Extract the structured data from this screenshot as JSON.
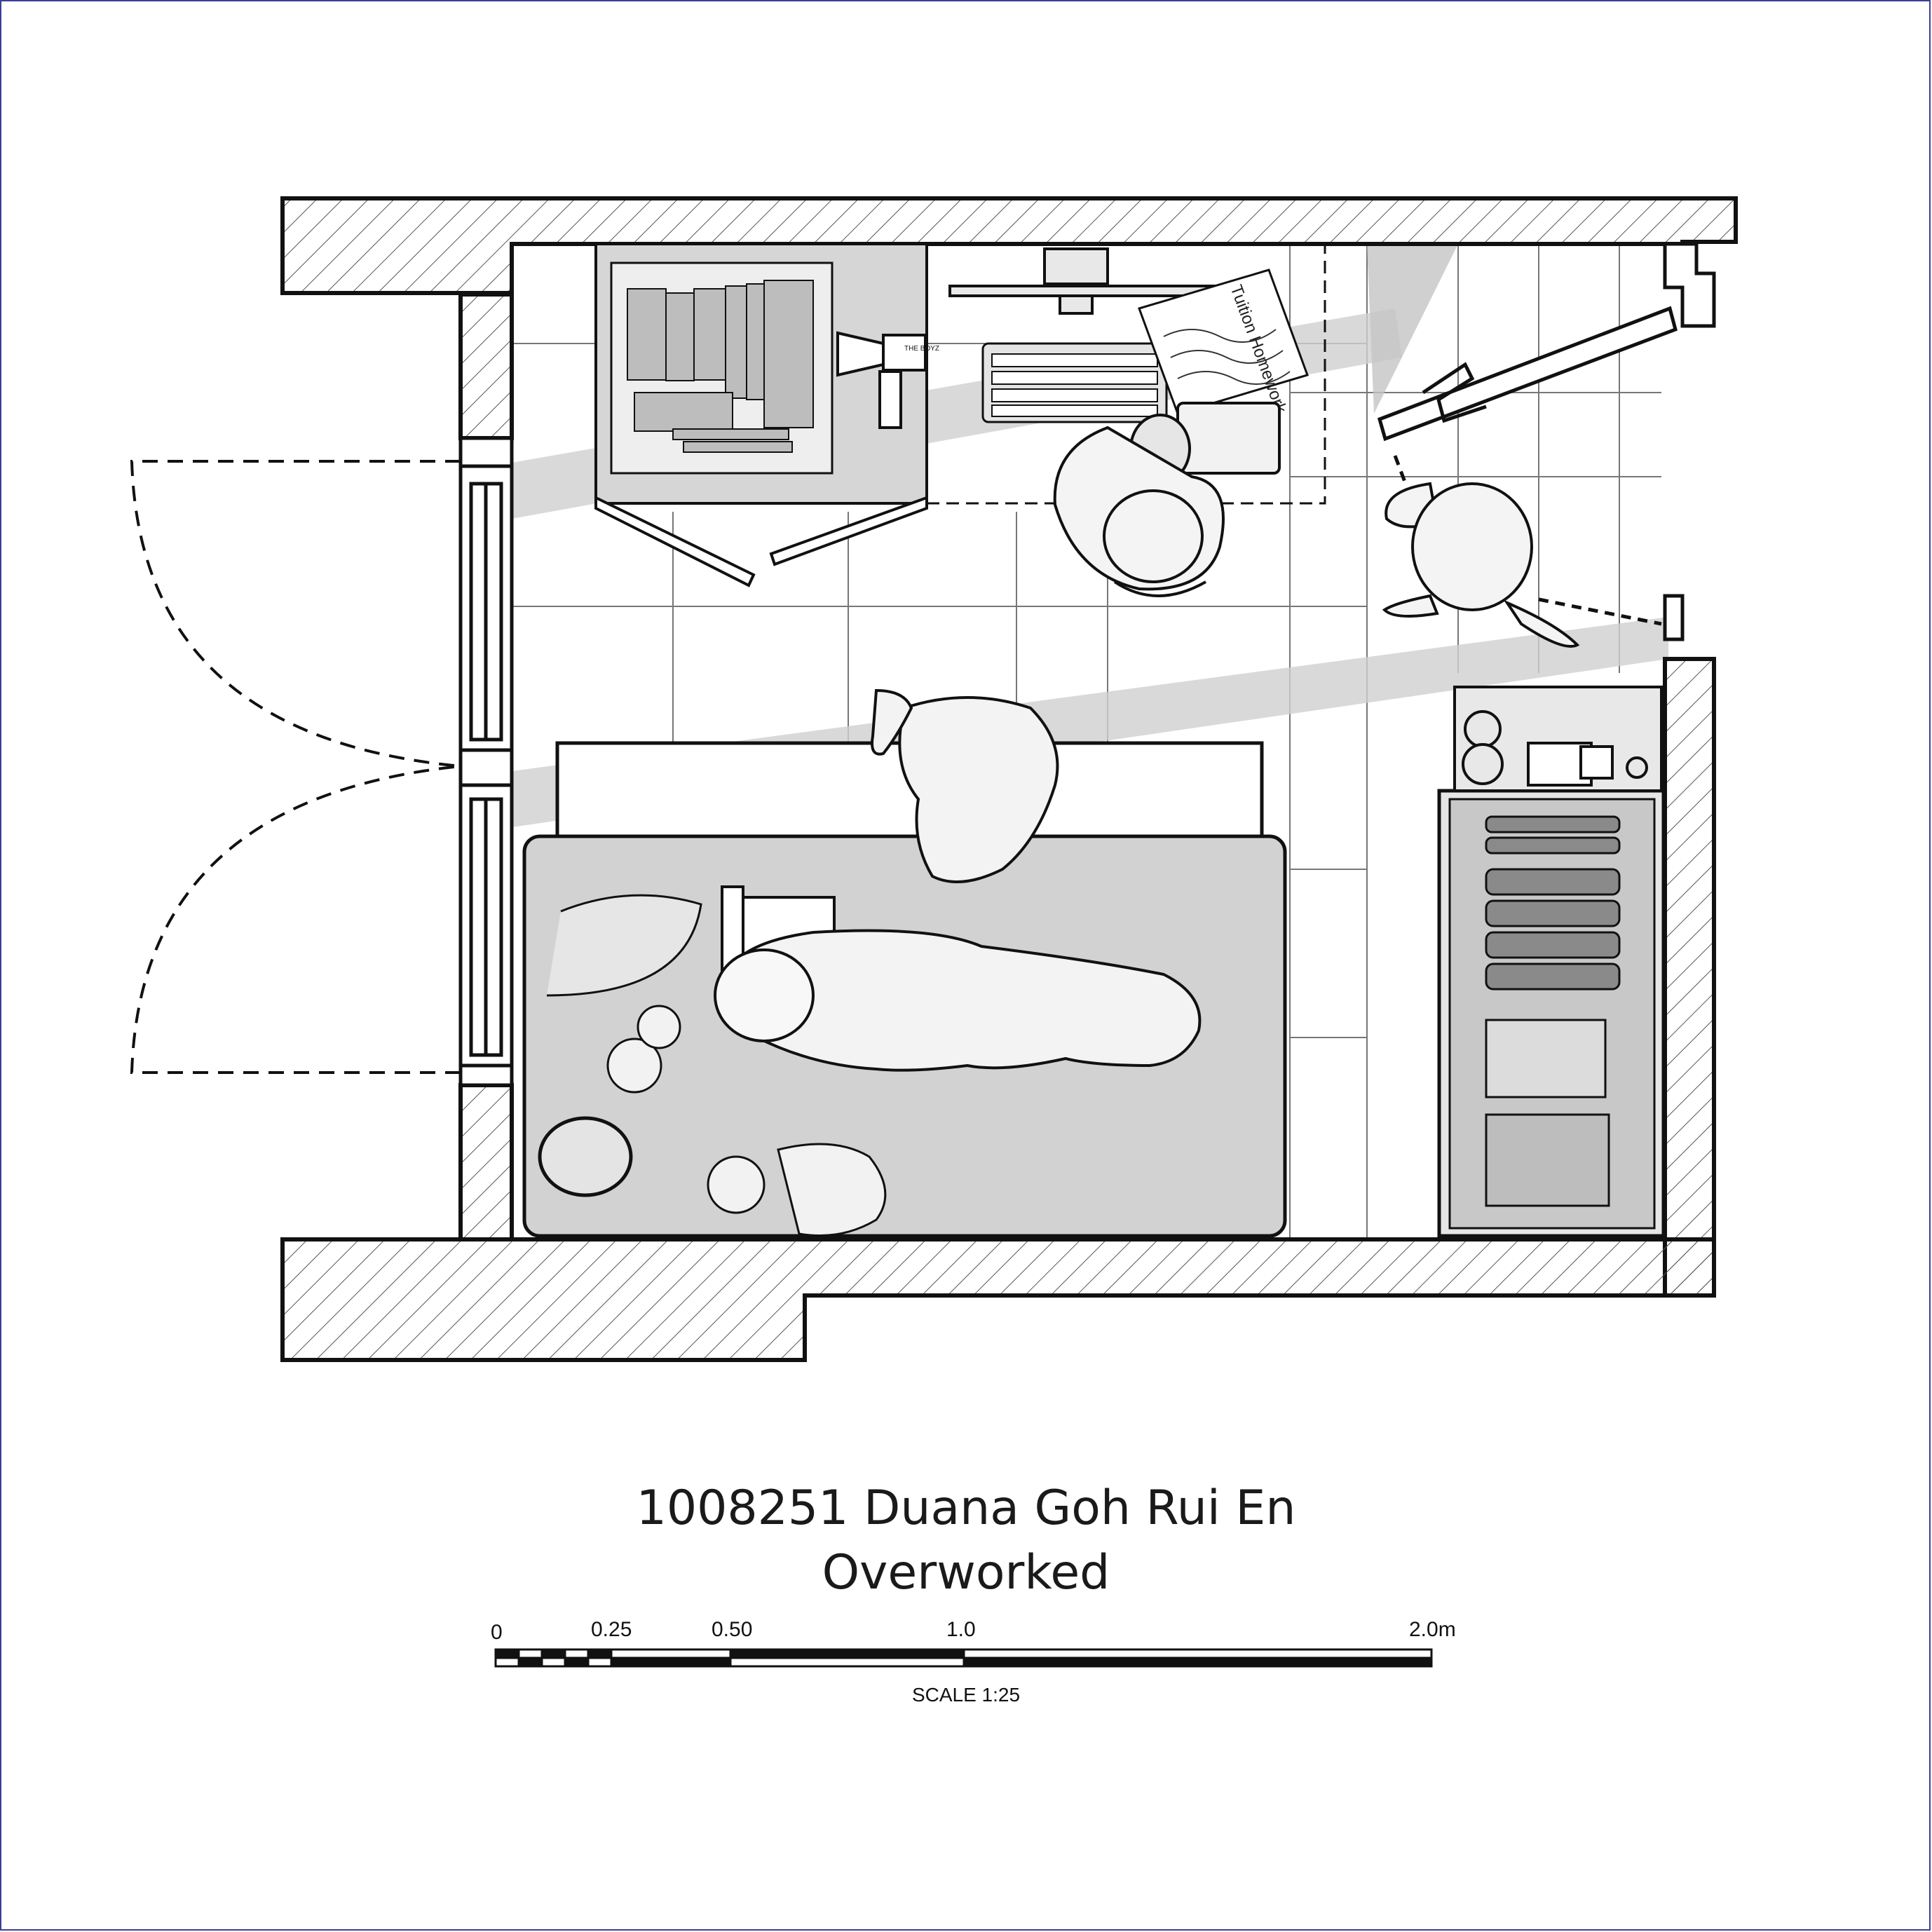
{
  "title": {
    "line1": "1008251 Duana Goh Rui En",
    "line2": "Overworked"
  },
  "scale_bar": {
    "ticks": [
      "0",
      "0.25",
      "0.50",
      "1.0",
      "2.0m"
    ],
    "caption": "SCALE 1:25"
  },
  "drawing_labels": {
    "homework_sheet": "Tuition Homework",
    "speaker_brand": "THE BOYZ"
  },
  "colors": {
    "ink": "#111111",
    "wall_fill": "#ffffff",
    "floor_shade": "#dcdcdc",
    "furniture_shade": "#cfcfcf",
    "light_beam": "#bdbdbd",
    "frame": "#3a3f9a"
  }
}
